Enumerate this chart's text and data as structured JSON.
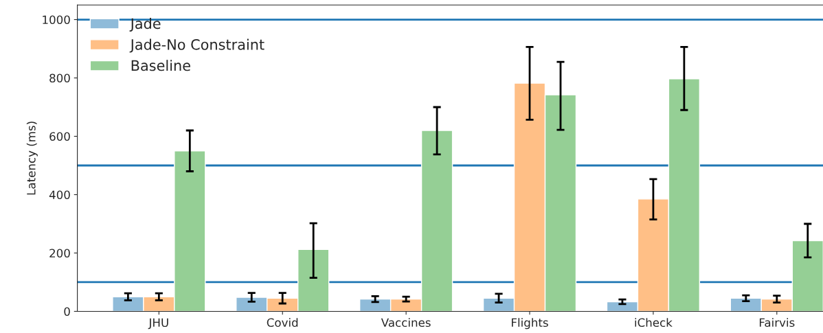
{
  "chart_data": {
    "type": "bar",
    "ylabel": "Latency (ms)",
    "categories": [
      "JHU",
      "Covid",
      "Vaccines",
      "Flights",
      "iCheck",
      "Fairvis"
    ],
    "series": [
      {
        "name": "Jade",
        "color": "#8fbbd9",
        "values": [
          50,
          48,
          42,
          45,
          33,
          45
        ],
        "errors": [
          [
            38,
            62
          ],
          [
            33,
            63
          ],
          [
            32,
            52
          ],
          [
            30,
            60
          ],
          [
            25,
            41
          ],
          [
            35,
            55
          ]
        ]
      },
      {
        "name": "Jade-No Constraint",
        "color": "#ffbf86",
        "values": [
          50,
          45,
          42,
          782,
          385,
          42
        ],
        "errors": [
          [
            38,
            62
          ],
          [
            27,
            63
          ],
          [
            34,
            50
          ],
          [
            657,
            906
          ],
          [
            315,
            453
          ],
          [
            30,
            54
          ]
        ]
      },
      {
        "name": "Baseline",
        "color": "#95cf95",
        "values": [
          550,
          212,
          620,
          742,
          797,
          242
        ],
        "errors": [
          [
            480,
            620
          ],
          [
            115,
            302
          ],
          [
            538,
            700
          ],
          [
            622,
            855
          ],
          [
            690,
            906
          ],
          [
            185,
            300
          ]
        ]
      }
    ],
    "ylim": [
      0,
      1050
    ],
    "yticks": [
      0,
      200,
      400,
      600,
      800,
      1000
    ],
    "ref_lines": [
      {
        "axis": "y",
        "value": 1000,
        "color": "#1f77b4"
      },
      {
        "axis": "y",
        "value": 500,
        "color": "#1f77b4"
      },
      {
        "axis": "y",
        "value": 100,
        "color": "#1f77b4"
      }
    ],
    "grid": false,
    "legend": "top left"
  }
}
